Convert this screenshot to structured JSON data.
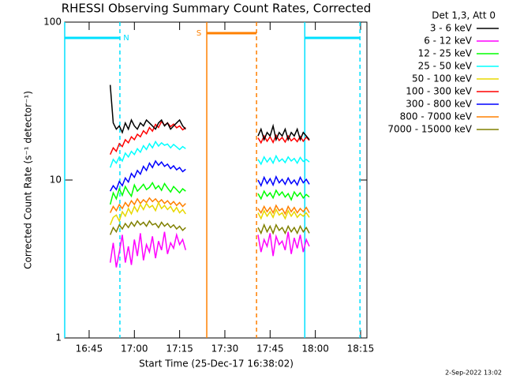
{
  "chart_data": {
    "type": "line",
    "title": "RHESSI Observing Summary Count Rates, Corrected",
    "xlabel": "Start Time (25-Dec-17 16:38:02)",
    "ylabel": "Corrected Count Rate (s⁻¹ detector⁻¹)",
    "legend_title": "Det 1,3, Att 0",
    "footer": "2-Sep-2022 13:02",
    "log_y": true,
    "xlim": [
      36.9,
      137.1
    ],
    "ylim": [
      1,
      100
    ],
    "yticks": [
      1,
      10,
      100
    ],
    "xticks": [
      {
        "value": 45,
        "label": "16:45"
      },
      {
        "value": 60,
        "label": "17:00"
      },
      {
        "value": 75,
        "label": "17:15"
      },
      {
        "value": 90,
        "label": "17:30"
      },
      {
        "value": 105,
        "label": "17:45"
      },
      {
        "value": 120,
        "label": "18:00"
      },
      {
        "value": 135,
        "label": "18:15"
      }
    ],
    "intervals": [
      {
        "label": "N",
        "color": "#00e0ff",
        "start": 36.9,
        "end": 55.2
      },
      {
        "label": "S",
        "color": "#ff8000",
        "start": 84.0,
        "end": 100.5
      },
      {
        "color": "#00e0ff",
        "start": 116.5,
        "end": 134.8
      }
    ],
    "x": [
      52,
      53,
      54,
      55,
      56,
      57,
      58,
      59,
      60,
      61,
      62,
      63,
      64,
      65,
      66,
      67,
      68,
      69,
      70,
      71,
      72,
      73,
      74,
      75,
      76,
      77,
      80,
      101,
      102,
      103,
      104,
      105,
      106,
      107,
      108,
      109,
      110,
      111,
      112,
      113,
      114,
      115,
      116,
      117,
      118
    ],
    "series": [
      {
        "name": "3 - 6 keV",
        "color": "#000000",
        "values": [
          40,
          23,
          21,
          22,
          20,
          23,
          21,
          24,
          22,
          21,
          23,
          22,
          24,
          23,
          22,
          21,
          23,
          24,
          22,
          23,
          21,
          22,
          23,
          24,
          22,
          21,
          null,
          19,
          21,
          18,
          20,
          19,
          22,
          18,
          20,
          19,
          21,
          18,
          20,
          19,
          21,
          18,
          20,
          19,
          18
        ]
      },
      {
        "name": "6 - 12 keV",
        "color": "#ff00ff",
        "values": [
          3,
          4,
          2.8,
          3.5,
          4.5,
          3,
          3.8,
          2.9,
          4.2,
          3.3,
          4.6,
          3.1,
          3.9,
          3.5,
          4.4,
          3.2,
          4.1,
          3.6,
          4.7,
          3.4,
          4,
          3.7,
          4.5,
          3.9,
          4.2,
          3.6,
          null,
          4.5,
          3.5,
          4.2,
          3.8,
          4.6,
          3.3,
          4.4,
          3.9,
          4.1,
          3.6,
          4.7,
          3.4,
          4.3,
          3.7,
          4.5,
          3.5,
          4.2,
          3.8
        ]
      },
      {
        "name": "12 - 25 keV",
        "color": "#00ff00",
        "values": [
          7,
          8.3,
          7.6,
          8.8,
          8,
          9.1,
          8.4,
          7.9,
          9.3,
          8.5,
          8.9,
          9.4,
          8.7,
          9,
          9.6,
          8.8,
          9.2,
          8.6,
          9.5,
          8.9,
          8.4,
          9.1,
          8.7,
          8.3,
          8.8,
          8.5,
          null,
          8.2,
          7.6,
          8.5,
          7.9,
          8.3,
          7.7,
          8.6,
          8,
          8.4,
          7.8,
          8.2,
          7.5,
          8.4,
          7.9,
          8.3,
          7.7,
          8.1,
          7.8
        ]
      },
      {
        "name": "25 - 50 keV",
        "color": "#00ffff",
        "values": [
          12,
          13.5,
          12.8,
          14,
          13.2,
          14.8,
          14,
          15.2,
          14.5,
          15.8,
          15,
          16.5,
          15.6,
          17,
          16,
          17.5,
          16.4,
          17.2,
          16.6,
          16.9,
          16,
          16.8,
          16.2,
          15.6,
          16.3,
          15.8,
          null,
          13.5,
          12.6,
          14,
          13,
          13.8,
          12.8,
          14.2,
          13.1,
          13.6,
          12.9,
          14,
          13.2,
          13.7,
          12.8,
          13.9,
          13.1,
          13.5,
          13
        ]
      },
      {
        "name": "50 - 100 keV",
        "color": "#e8d800",
        "values": [
          5.2,
          5.8,
          6,
          5.5,
          6.3,
          5.9,
          6.6,
          6.1,
          6.8,
          6.3,
          7,
          6.5,
          7.1,
          6.7,
          6.9,
          6.4,
          7.2,
          6.6,
          6.9,
          6.5,
          6.8,
          6.3,
          6.7,
          6.2,
          6.5,
          6.1,
          null,
          6.2,
          5.7,
          6.4,
          5.9,
          6.3,
          5.8,
          6.5,
          6,
          6.2,
          5.7,
          6.4,
          5.9,
          6.3,
          5.8,
          6.1,
          5.9,
          6.2,
          5.8
        ]
      },
      {
        "name": "100 - 300 keV",
        "color": "#ff0000",
        "values": [
          14.5,
          16,
          15.2,
          17,
          16.3,
          18,
          17.2,
          18.8,
          18,
          19.5,
          18.8,
          20.5,
          19.6,
          21.5,
          20.4,
          22.5,
          21.5,
          23.5,
          22.2,
          23,
          21.8,
          22.6,
          21.4,
          22,
          20.8,
          21.5,
          null,
          18.5,
          17.2,
          19,
          17.6,
          18.8,
          17.3,
          19.2,
          17.8,
          18.6,
          17.4,
          19,
          17.7,
          18.4,
          17.5,
          18.9,
          17.6,
          18.7,
          17.8
        ]
      },
      {
        "name": "300 - 800 keV",
        "color": "#0000ff",
        "values": [
          8.5,
          9.2,
          8.7,
          9.8,
          9.2,
          10.3,
          9.7,
          11,
          10.4,
          11.5,
          10.9,
          12.2,
          11.5,
          12.8,
          12,
          13.2,
          12.4,
          13,
          12.2,
          12.6,
          11.8,
          12.3,
          11.6,
          12,
          11.3,
          11.7,
          null,
          10,
          9.2,
          10.4,
          9.5,
          10.2,
          9.3,
          10.5,
          9.6,
          10.1,
          9.4,
          10.3,
          9.5,
          10,
          9.3,
          10.4,
          9.6,
          10.1,
          9.4
        ]
      },
      {
        "name": "800 - 7000 keV",
        "color": "#ff8000",
        "values": [
          6.2,
          6.8,
          6.4,
          7,
          6.6,
          7.2,
          6.8,
          7.4,
          7,
          7.6,
          7.1,
          7.5,
          7.2,
          7.7,
          7.3,
          7.6,
          7.2,
          7.5,
          7.1,
          7.4,
          7,
          7.3,
          6.9,
          7.2,
          6.8,
          7.1,
          null,
          6.6,
          6.2,
          6.8,
          6.3,
          6.7,
          6.2,
          6.9,
          6.4,
          6.6,
          6.1,
          6.8,
          6.3,
          6.7,
          6.2,
          6.6,
          6.3,
          6.7,
          6.2
        ]
      },
      {
        "name": "7000 - 15000 keV",
        "color": "#808000",
        "values": [
          4.5,
          5,
          4.7,
          5.2,
          4.9,
          5.3,
          5,
          5.4,
          5.1,
          5.5,
          5.2,
          5.4,
          5.1,
          5.5,
          5.2,
          5.3,
          5,
          5.4,
          5.1,
          5.3,
          5,
          5.2,
          4.9,
          5.1,
          4.8,
          5,
          null,
          5,
          4.6,
          5.2,
          4.7,
          5.1,
          4.6,
          5.2,
          4.8,
          5,
          4.6,
          5.1,
          4.7,
          5,
          4.6,
          5.1,
          4.7,
          5,
          4.6
        ]
      }
    ]
  }
}
